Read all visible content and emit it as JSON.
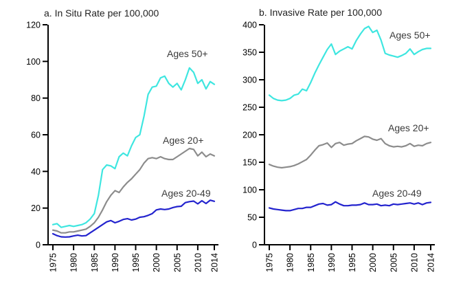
{
  "figure": {
    "background": "#ffffff",
    "axis_color": "#000000",
    "label_color": "#3a3a3a"
  },
  "chart_data": [
    {
      "id": "in-situ",
      "type": "line",
      "title": "a. In Situ Rate per 100,000",
      "xlabel": "",
      "ylabel": "",
      "ylim": [
        0,
        120
      ],
      "yticks": [
        0,
        20,
        40,
        60,
        80,
        100,
        120
      ],
      "xticks": [
        1975,
        1980,
        1985,
        1990,
        1995,
        2000,
        2005,
        2010,
        2014
      ],
      "xlim": [
        1975,
        2014
      ],
      "grid": false,
      "legend_position": "inline-annotations",
      "x": [
        1975,
        1976,
        1977,
        1978,
        1979,
        1980,
        1981,
        1982,
        1983,
        1984,
        1985,
        1986,
        1987,
        1988,
        1989,
        1990,
        1991,
        1992,
        1993,
        1994,
        1995,
        1996,
        1997,
        1998,
        1999,
        2000,
        2001,
        2002,
        2003,
        2004,
        2005,
        2006,
        2007,
        2008,
        2009,
        2010,
        2011,
        2012,
        2013,
        2014
      ],
      "series": [
        {
          "name": "Ages 50+",
          "color": "#3EE6E0",
          "values": [
            11,
            11.5,
            9.5,
            10,
            10.5,
            10,
            10.5,
            11,
            12,
            14,
            17,
            27,
            41,
            43.5,
            43,
            41.5,
            48,
            50,
            48.5,
            54,
            58.5,
            60,
            70,
            82,
            86,
            86.5,
            91,
            92,
            88,
            86,
            88,
            84.5,
            90,
            96.5,
            94,
            88,
            90,
            85,
            89,
            87.5
          ]
        },
        {
          "name": "Ages 20+",
          "color": "#8C8C8C",
          "values": [
            8,
            7.5,
            6.5,
            6.5,
            7,
            7,
            7.5,
            8,
            8.5,
            10,
            12,
            15,
            19,
            23.5,
            27,
            29.5,
            28.5,
            31.5,
            34,
            36,
            38.5,
            41,
            44.5,
            47,
            47.5,
            47,
            48,
            47,
            46.5,
            46.5,
            48,
            49.5,
            51,
            52.5,
            52,
            48.5,
            50.5,
            48,
            49.5,
            48.5
          ]
        },
        {
          "name": "Ages 20-49",
          "color": "#2323CE",
          "values": [
            6,
            5,
            4.3,
            4.2,
            4.3,
            4.8,
            5.2,
            4.8,
            5,
            6.5,
            8,
            9.5,
            11,
            12.5,
            13.2,
            12,
            12.8,
            13.8,
            14.2,
            13.5,
            14,
            15,
            15.3,
            16,
            17,
            19,
            19.5,
            19.2,
            19.5,
            20.3,
            20.8,
            21,
            23,
            23.5,
            23.8,
            22.3,
            24,
            22.5,
            24.3,
            23.7
          ]
        }
      ]
    },
    {
      "id": "invasive",
      "type": "line",
      "title": "b. Invasive Rate per 100,000",
      "xlabel": "",
      "ylabel": "",
      "ylim": [
        0,
        400
      ],
      "yticks": [
        0,
        50,
        100,
        150,
        200,
        250,
        300,
        350,
        400
      ],
      "xticks": [
        1975,
        1980,
        1985,
        1990,
        1995,
        2000,
        2005,
        2010,
        2014
      ],
      "xlim": [
        1975,
        2014
      ],
      "grid": false,
      "legend_position": "inline-annotations",
      "x": [
        1975,
        1976,
        1977,
        1978,
        1979,
        1980,
        1981,
        1982,
        1983,
        1984,
        1985,
        1986,
        1987,
        1988,
        1989,
        1990,
        1991,
        1992,
        1993,
        1994,
        1995,
        1996,
        1997,
        1998,
        1999,
        2000,
        2001,
        2002,
        2003,
        2004,
        2005,
        2006,
        2007,
        2008,
        2009,
        2010,
        2011,
        2012,
        2013,
        2014
      ],
      "series": [
        {
          "name": "Ages 50+",
          "color": "#3EE6E0",
          "values": [
            272,
            266,
            263,
            262,
            263,
            266,
            272,
            274,
            283,
            280,
            295,
            312,
            327,
            341,
            355,
            365,
            346,
            352,
            356,
            360,
            356,
            371,
            383,
            393,
            397,
            386,
            390,
            372,
            348,
            345,
            343,
            341,
            344,
            348,
            356,
            346,
            351,
            355,
            357,
            357
          ]
        },
        {
          "name": "Ages 20+",
          "color": "#8C8C8C",
          "values": [
            146,
            143,
            141,
            140,
            141,
            142,
            144,
            147,
            151,
            155,
            163,
            172,
            180,
            182,
            185,
            177,
            184,
            186,
            181,
            183,
            184,
            189,
            193,
            197,
            196,
            192,
            190,
            193,
            184,
            180,
            178,
            179,
            178,
            180,
            184,
            179,
            181,
            180,
            184,
            186
          ]
        },
        {
          "name": "Ages 20-49",
          "color": "#2323CE",
          "values": [
            67,
            65,
            64,
            63,
            62,
            62,
            64,
            66,
            66,
            68,
            68,
            71,
            74,
            75,
            72,
            73,
            78,
            74,
            71,
            71,
            72,
            72,
            73,
            76,
            73,
            73,
            74,
            71,
            72,
            71,
            74,
            73,
            74,
            75,
            76,
            74,
            76,
            73,
            76,
            77
          ]
        }
      ]
    }
  ]
}
